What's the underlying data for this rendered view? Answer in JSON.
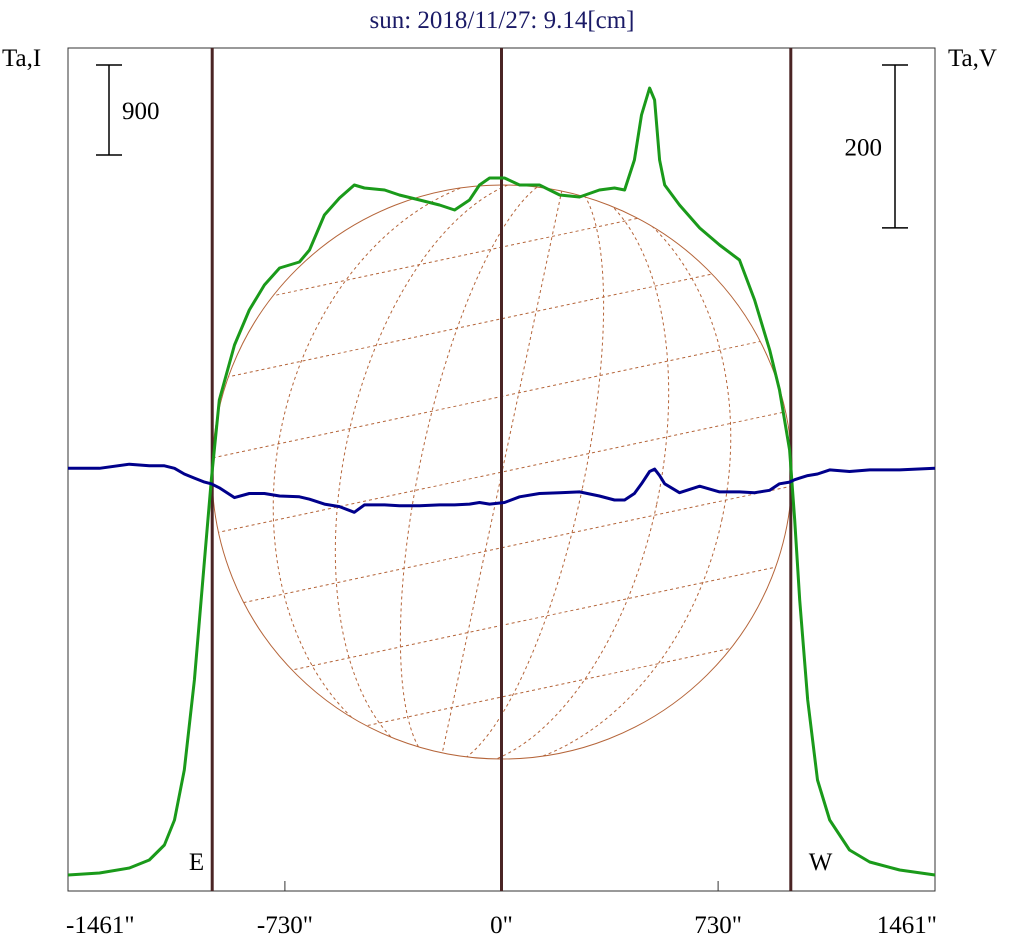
{
  "chart_data": {
    "type": "line",
    "title": "sun: 2018/11/27: 9.14[cm]",
    "ylabel": "Ta,I",
    "y2label": "Ta,V",
    "x": [
      -1461,
      -1355,
      -1254,
      -1187,
      -1136,
      -1102,
      -1069,
      -1035,
      -1001,
      -978,
      -951,
      -900,
      -850,
      -799,
      -748,
      -681,
      -647,
      -597,
      -546,
      -496,
      -462,
      -394,
      -344,
      -276,
      -209,
      -158,
      -108,
      -74,
      -40,
      10,
      61,
      128,
      196,
      263,
      330,
      381,
      415,
      448,
      472,
      499,
      516,
      533,
      550,
      600,
      668,
      735,
      802,
      853,
      904,
      937,
      971,
      988,
      1005,
      1032,
      1065,
      1106,
      1173,
      1241,
      1342,
      1461
    ],
    "series": [
      {
        "name": "Ta,I",
        "color": "#1a9a1a",
        "values": [
          160,
          180,
          230,
          310,
          460,
          710,
          1210,
          2110,
          3310,
          4110,
          4910,
          5460,
          5810,
          6060,
          6230,
          6290,
          6410,
          6760,
          6930,
          7060,
          7030,
          7010,
          6960,
          6910,
          6860,
          6810,
          6910,
          7060,
          7130,
          7130,
          7060,
          7060,
          6960,
          6940,
          7010,
          7030,
          7010,
          7310,
          7760,
          8030,
          7910,
          7310,
          7060,
          6860,
          6630,
          6460,
          6310,
          5910,
          5410,
          5010,
          4410,
          3710,
          2910,
          1910,
          1110,
          710,
          410,
          290,
          210,
          160
        ]
      },
      {
        "name": "Ta,V",
        "color": "#00008b",
        "axis": "y2",
        "values": [
          2,
          2,
          7,
          5,
          5,
          2,
          -5,
          -10,
          -15,
          -17,
          -22,
          -34,
          -29,
          -29,
          -32,
          -33,
          -36,
          -42,
          -45,
          -52,
          -43,
          -43,
          -44,
          -44,
          -43,
          -43,
          -42,
          -40,
          -42,
          -40,
          -33,
          -29,
          -28,
          -27,
          -32,
          -37,
          -37,
          -29,
          -17,
          -2,
          1,
          -7,
          -17,
          -28,
          -20,
          -27,
          -27,
          -28,
          -25,
          -17,
          -15,
          -12,
          -10,
          -7,
          -5,
          0,
          -2,
          0,
          0,
          2
        ]
      }
    ],
    "xlim": [
      -1461,
      1461
    ],
    "xticks": [
      {
        "value": -1461,
        "label": "-1461\""
      },
      {
        "value": -730,
        "label": "-730\""
      },
      {
        "value": 0,
        "label": "0\""
      },
      {
        "value": 730,
        "label": "730\""
      },
      {
        "value": 1461,
        "label": "1461\""
      }
    ],
    "ylim": [
      0,
      8430
    ],
    "y2lim": [
      -517,
      518
    ],
    "scale_bars": [
      {
        "value": 900
      },
      {
        "value": 200,
        "axis": "y2"
      }
    ],
    "limb_lines": [
      {
        "value": -975,
        "label": "E"
      },
      {
        "value": 0
      },
      {
        "value": 975,
        "label": "W"
      }
    ],
    "line_color": "#4a2424"
  }
}
